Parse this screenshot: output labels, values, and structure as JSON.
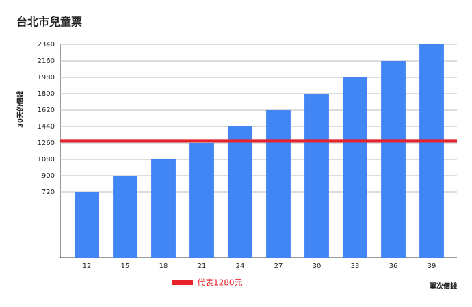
{
  "chart_data": {
    "type": "bar",
    "title": "台北市兒童票",
    "x_label": "單次價錢",
    "y_label": "30天的價錢",
    "categories": [
      "12",
      "15",
      "18",
      "21",
      "24",
      "27",
      "30",
      "33",
      "36",
      "39"
    ],
    "values": [
      720,
      900,
      1080,
      1260,
      1440,
      1620,
      1800,
      1980,
      2160,
      2340
    ],
    "color": "#4285f4",
    "ylim": [
      0,
      2340
    ],
    "yticks": [
      720,
      900,
      1080,
      1260,
      1440,
      1620,
      1800,
      1980,
      2160,
      2340
    ],
    "grid": true,
    "reference_line": {
      "value": 1280,
      "label": "代表1280元",
      "color": "#e8222a"
    }
  }
}
